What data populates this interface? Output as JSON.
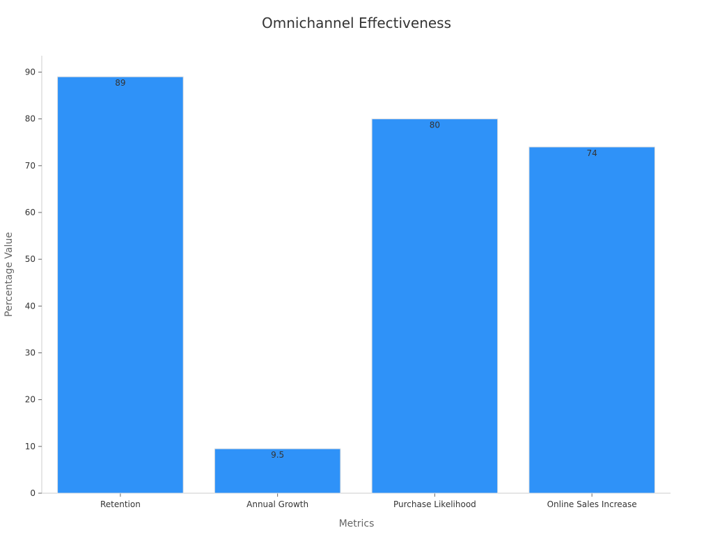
{
  "chart_data": {
    "type": "bar",
    "title": "Omnichannel Effectiveness",
    "xlabel": "Metrics",
    "ylabel": "Percentage Value",
    "categories": [
      "Retention",
      "Annual Growth",
      "Purchase Likelihood",
      "Online Sales Increase"
    ],
    "values": [
      89,
      9.5,
      80,
      74
    ],
    "data_labels": [
      "89",
      "9.5",
      "80",
      "74"
    ],
    "ylim": [
      0,
      93.5
    ],
    "yticks": [
      0,
      10,
      20,
      30,
      40,
      50,
      60,
      70,
      80,
      90
    ],
    "grid": false,
    "legend": "none",
    "bar_color": "#2F92F8"
  }
}
